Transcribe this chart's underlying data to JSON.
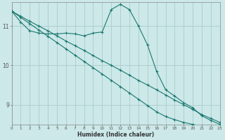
{
  "xlabel": "Humidex (Indice chaleur)",
  "bg_color": "#cce8e8",
  "grid_color": "#aacccc",
  "line_color": "#1a7870",
  "xlim": [
    0,
    23
  ],
  "ylim": [
    8.5,
    11.6
  ],
  "yticks": [
    9,
    10,
    11
  ],
  "xticks": [
    0,
    1,
    2,
    3,
    4,
    5,
    6,
    7,
    8,
    9,
    10,
    11,
    12,
    13,
    14,
    15,
    16,
    17,
    18,
    19,
    20,
    21,
    22,
    23
  ],
  "series": [
    {
      "x": [
        0,
        1,
        2,
        3,
        4,
        5,
        6,
        7,
        8,
        9,
        10,
        11,
        12,
        13,
        14,
        15,
        16,
        17,
        18,
        19,
        20,
        21,
        22,
        23
      ],
      "y": [
        11.38,
        11.25,
        11.12,
        11.0,
        10.88,
        10.75,
        10.62,
        10.5,
        10.38,
        10.25,
        10.12,
        10.0,
        9.88,
        9.75,
        9.62,
        9.5,
        9.38,
        9.25,
        9.12,
        9.0,
        8.88,
        8.75,
        8.65,
        8.55
      ]
    },
    {
      "x": [
        0,
        1,
        2,
        3,
        4,
        5,
        6,
        7,
        8,
        9,
        10,
        11,
        12,
        13,
        14,
        15,
        16,
        17,
        18,
        19,
        20,
        21,
        22,
        23
      ],
      "y": [
        11.38,
        11.22,
        11.06,
        10.9,
        10.74,
        10.58,
        10.42,
        10.26,
        10.1,
        9.94,
        9.78,
        9.62,
        9.46,
        9.3,
        9.14,
        8.98,
        8.82,
        8.7,
        8.62,
        8.55,
        8.5,
        8.45,
        8.4,
        8.35
      ]
    },
    {
      "x": [
        0,
        1,
        2,
        3,
        4,
        5,
        6,
        7,
        8,
        9,
        10,
        11,
        12,
        13,
        14,
        15,
        16,
        17,
        18,
        19,
        20,
        21,
        22,
        23
      ],
      "y": [
        11.38,
        11.1,
        10.88,
        10.82,
        10.8,
        10.8,
        10.82,
        10.8,
        10.75,
        10.82,
        10.85,
        11.42,
        11.55,
        11.42,
        11.0,
        10.52,
        9.85,
        9.38,
        9.22,
        9.05,
        8.92,
        8.72,
        8.6,
        8.5
      ]
    }
  ]
}
